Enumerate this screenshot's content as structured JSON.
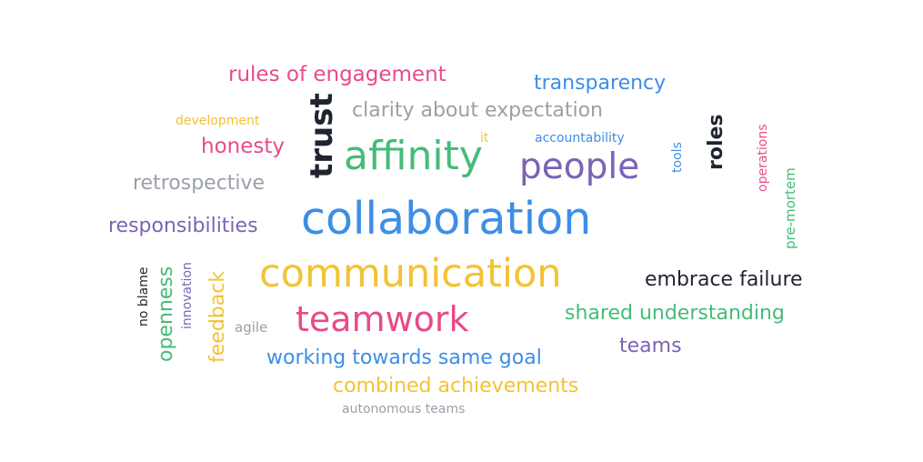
{
  "colors": {
    "pink": "#e74b8b",
    "blue": "#3d8ee6",
    "gray": "#9aa0a8",
    "green": "#45bc78",
    "purple": "#7b63b6",
    "yellow": "#f4c232",
    "dark": "#1f2430"
  },
  "words": [
    {
      "text": "rules of engagement",
      "color": "pink"
    },
    {
      "text": "transparency",
      "color": "blue"
    },
    {
      "text": "clarity about expectation",
      "color": "gray"
    },
    {
      "text": "development",
      "color": "yellow"
    },
    {
      "text": "trust",
      "color": "dark"
    },
    {
      "text": "roles",
      "color": "dark"
    },
    {
      "text": "operations",
      "color": "pink"
    },
    {
      "text": "tools",
      "color": "blue"
    },
    {
      "text": "accountability",
      "color": "blue"
    },
    {
      "text": "it",
      "color": "yellow"
    },
    {
      "text": "honesty",
      "color": "pink"
    },
    {
      "text": "affinity",
      "color": "green"
    },
    {
      "text": "people",
      "color": "purple"
    },
    {
      "text": "retrospective",
      "color": "gray"
    },
    {
      "text": "pre-mortem",
      "color": "green"
    },
    {
      "text": "collaboration",
      "color": "blue"
    },
    {
      "text": "responsibilities",
      "color": "purple"
    },
    {
      "text": "communication",
      "color": "yellow"
    },
    {
      "text": "embrace failure",
      "color": "dark"
    },
    {
      "text": "no blame",
      "color": "dark"
    },
    {
      "text": "openness",
      "color": "green"
    },
    {
      "text": "innovation",
      "color": "purple"
    },
    {
      "text": "feedback",
      "color": "yellow"
    },
    {
      "text": "agile",
      "color": "gray"
    },
    {
      "text": "teamwork",
      "color": "pink"
    },
    {
      "text": "shared understanding",
      "color": "green"
    },
    {
      "text": "teams",
      "color": "purple"
    },
    {
      "text": "working towards same goal",
      "color": "blue"
    },
    {
      "text": "combined achievements",
      "color": "yellow"
    },
    {
      "text": "autonomous teams",
      "color": "gray"
    }
  ]
}
